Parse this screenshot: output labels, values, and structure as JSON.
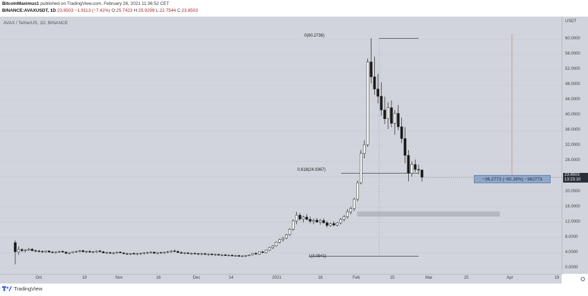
{
  "header": {
    "author": "BitcoinMaximus1",
    "published_text": "published on TradingView.com, February 28, 2021 11:36:52 CET",
    "symbol": "BINANCE:AVAXUSDT, 1D",
    "last": "23.8503",
    "change": "−1.9113 (−7.42%)",
    "o_label": "O:",
    "o_value": "25.7423",
    "h_label": "H:",
    "h_value": "25.9299",
    "l_label": "L:",
    "l_value": "22.7544",
    "c_label": "C:",
    "c_value": "23.8503"
  },
  "chart_title": "AVAX / TetherUS, 1D, BINANCE",
  "price_axis": {
    "currency": "USDT",
    "ticks": [
      "60.0000",
      "56.0000",
      "52.0000",
      "48.0000",
      "44.0000",
      "40.0000",
      "36.0000",
      "32.0000",
      "28.0000",
      "24.0000",
      "20.0000",
      "16.0000",
      "12.0000",
      "8.0000",
      "4.0000",
      "0.0000"
    ],
    "tick_values": [
      60,
      56,
      52,
      48,
      44,
      40,
      36,
      32,
      28,
      24,
      20,
      16,
      12,
      8,
      4,
      0
    ],
    "current_price": "23.8503",
    "countdown": "13:23:10"
  },
  "time_axis": {
    "ticks": [
      "Oct",
      "19",
      "Nov",
      "16",
      "Dec",
      "14",
      "2021",
      "18",
      "Feb",
      "15",
      "Mar",
      "15",
      "Apr",
      "19"
    ]
  },
  "fib": {
    "top_label": "0(60.2736)",
    "mid_label": "0.618(24.9367)",
    "bottom_label": "1(3.0941)",
    "top_value": 60.2736,
    "mid_value": 24.9367,
    "bottom_value": 3.0941
  },
  "measure": {
    "text": "−36.2773 (−60.19%) −362773"
  },
  "support_zone": {
    "low": 13.6,
    "high": 14.8
  },
  "footer": {
    "brand": "TradingView"
  },
  "colors": {
    "chart_bg": "#d1d4dc",
    "candle_up": "#ffffff",
    "candle_down": "#1a1a1a",
    "zone": "#b4b7bf",
    "measure": "#8fa8c8",
    "arrow": "#d08a8a"
  },
  "chart_data": {
    "type": "candlestick",
    "interval": "1D",
    "ylim": [
      -1.5,
      66
    ],
    "candles": [
      [
        6.7,
        7.3,
        1.0,
        4.3
      ],
      [
        4.3,
        5.8,
        3.5,
        4.9
      ],
      [
        4.9,
        5.2,
        4.2,
        4.6
      ],
      [
        4.6,
        5.0,
        4.1,
        4.8
      ],
      [
        4.8,
        5.3,
        4.5,
        5.0
      ],
      [
        5.0,
        5.2,
        4.4,
        4.6
      ],
      [
        4.6,
        4.9,
        4.2,
        4.5
      ],
      [
        4.5,
        4.8,
        4.1,
        4.4
      ],
      [
        4.4,
        4.7,
        4.0,
        4.3
      ],
      [
        4.3,
        4.6,
        4.0,
        4.5
      ],
      [
        4.5,
        4.7,
        4.1,
        4.2
      ],
      [
        4.2,
        4.5,
        3.9,
        4.1
      ],
      [
        4.1,
        4.4,
        3.8,
        4.3
      ],
      [
        4.3,
        4.6,
        4.0,
        4.4
      ],
      [
        4.4,
        4.7,
        4.1,
        4.2
      ],
      [
        4.2,
        4.4,
        3.7,
        3.9
      ],
      [
        3.9,
        4.2,
        3.6,
        4.1
      ],
      [
        4.1,
        4.4,
        3.9,
        4.3
      ],
      [
        4.3,
        4.6,
        4.0,
        4.4
      ],
      [
        4.4,
        4.8,
        4.1,
        4.6
      ],
      [
        4.6,
        4.8,
        4.2,
        4.3
      ],
      [
        4.3,
        4.6,
        4.0,
        4.4
      ],
      [
        4.4,
        4.7,
        4.1,
        4.2
      ],
      [
        4.2,
        4.5,
        3.9,
        4.3
      ],
      [
        4.3,
        4.6,
        4.0,
        4.5
      ],
      [
        4.5,
        4.8,
        4.2,
        4.3
      ],
      [
        4.3,
        4.5,
        3.9,
        4.0
      ],
      [
        4.0,
        4.3,
        3.7,
        4.1
      ],
      [
        4.1,
        4.3,
        3.8,
        3.9
      ],
      [
        3.9,
        4.2,
        3.6,
        4.0
      ],
      [
        4.0,
        4.3,
        3.7,
        4.2
      ],
      [
        4.2,
        4.4,
        3.9,
        4.0
      ],
      [
        4.0,
        4.2,
        3.6,
        3.8
      ],
      [
        3.8,
        4.0,
        3.5,
        3.7
      ],
      [
        3.7,
        4.0,
        3.4,
        3.9
      ],
      [
        3.9,
        4.1,
        3.6,
        3.7
      ],
      [
        3.7,
        4.0,
        3.4,
        3.8
      ],
      [
        3.8,
        4.1,
        3.5,
        3.9
      ],
      [
        3.9,
        4.2,
        3.6,
        4.0
      ],
      [
        4.0,
        4.3,
        3.7,
        4.1
      ],
      [
        4.1,
        4.4,
        3.8,
        4.2
      ],
      [
        4.2,
        4.4,
        3.8,
        3.9
      ],
      [
        3.9,
        4.2,
        3.6,
        4.1
      ],
      [
        4.1,
        4.3,
        3.8,
        4.0
      ],
      [
        4.0,
        4.3,
        3.7,
        4.2
      ],
      [
        4.2,
        4.5,
        3.9,
        4.3
      ],
      [
        4.3,
        4.7,
        4.0,
        4.5
      ],
      [
        4.5,
        4.9,
        4.2,
        4.4
      ],
      [
        4.4,
        4.6,
        4.0,
        4.1
      ],
      [
        4.1,
        4.4,
        3.8,
        3.9
      ],
      [
        3.9,
        4.2,
        3.6,
        4.0
      ],
      [
        4.0,
        4.2,
        3.7,
        3.8
      ],
      [
        3.8,
        4.1,
        3.5,
        3.9
      ],
      [
        3.9,
        4.1,
        3.6,
        3.8
      ],
      [
        3.8,
        4.0,
        3.5,
        3.7
      ],
      [
        3.7,
        4.0,
        3.4,
        3.8
      ],
      [
        3.8,
        4.0,
        3.5,
        3.6
      ],
      [
        3.6,
        3.9,
        3.3,
        3.7
      ],
      [
        3.7,
        3.9,
        3.4,
        3.5
      ],
      [
        3.5,
        3.8,
        3.2,
        3.6
      ],
      [
        3.6,
        3.8,
        3.3,
        3.4
      ],
      [
        3.4,
        3.7,
        3.1,
        3.5
      ],
      [
        3.5,
        3.7,
        3.2,
        3.3
      ],
      [
        3.3,
        3.6,
        3.1,
        3.4
      ],
      [
        3.4,
        3.6,
        3.1,
        3.2
      ],
      [
        3.2,
        3.5,
        3.0,
        3.3
      ],
      [
        3.3,
        3.5,
        3.0,
        3.1
      ],
      [
        3.1,
        3.4,
        2.9,
        3.2
      ],
      [
        3.2,
        3.4,
        2.9,
        3.3
      ],
      [
        3.3,
        3.6,
        3.1,
        3.5
      ],
      [
        3.5,
        4.0,
        3.3,
        3.9
      ],
      [
        3.9,
        4.2,
        3.5,
        3.7
      ],
      [
        3.7,
        4.4,
        3.5,
        4.3
      ],
      [
        4.3,
        4.5,
        3.9,
        4.1
      ],
      [
        4.1,
        4.8,
        3.9,
        4.7
      ],
      [
        4.7,
        5.6,
        4.5,
        5.4
      ],
      [
        5.4,
        6.0,
        5.0,
        5.8
      ],
      [
        5.8,
        7.0,
        5.6,
        6.8
      ],
      [
        6.8,
        7.8,
        6.5,
        7.5
      ],
      [
        7.5,
        8.2,
        7.0,
        7.9
      ],
      [
        7.9,
        9.0,
        7.6,
        8.8
      ],
      [
        8.8,
        10.5,
        8.5,
        10.2
      ],
      [
        10.2,
        12.8,
        9.8,
        12.4
      ],
      [
        12.4,
        14.8,
        11.5,
        13.9
      ],
      [
        13.9,
        14.5,
        12.5,
        12.9
      ],
      [
        12.9,
        13.8,
        12.0,
        13.4
      ],
      [
        13.4,
        14.2,
        12.6,
        12.8
      ],
      [
        12.8,
        13.5,
        11.8,
        12.3
      ],
      [
        12.3,
        13.0,
        11.5,
        12.6
      ],
      [
        12.6,
        13.2,
        11.9,
        12.1
      ],
      [
        12.1,
        12.9,
        11.4,
        12.5
      ],
      [
        12.5,
        13.1,
        11.8,
        11.9
      ],
      [
        11.9,
        12.4,
        10.7,
        11.2
      ],
      [
        11.2,
        12.0,
        10.8,
        11.7
      ],
      [
        11.7,
        12.3,
        11.0,
        11.3
      ],
      [
        11.3,
        12.1,
        10.9,
        11.9
      ],
      [
        11.9,
        13.2,
        11.5,
        12.8
      ],
      [
        12.8,
        14.0,
        12.3,
        13.5
      ],
      [
        13.5,
        15.5,
        13.0,
        14.8
      ],
      [
        14.8,
        16.2,
        14.1,
        15.6
      ],
      [
        15.6,
        18.5,
        15.0,
        18.1
      ],
      [
        18.1,
        23.0,
        17.5,
        22.4
      ],
      [
        22.4,
        31.0,
        22.0,
        30.1
      ],
      [
        30.1,
        33.5,
        28.8,
        32.4
      ],
      [
        32.4,
        55.0,
        31.8,
        54.1
      ],
      [
        54.1,
        60.3,
        48.5,
        50.2
      ],
      [
        50.2,
        55.5,
        45.5,
        47.0
      ],
      [
        47.0,
        51.0,
        43.2,
        45.1
      ],
      [
        45.1,
        48.8,
        40.0,
        41.5
      ],
      [
        41.5,
        45.0,
        37.8,
        39.2
      ],
      [
        39.2,
        43.5,
        36.5,
        42.1
      ],
      [
        42.1,
        44.0,
        37.0,
        38.0
      ],
      [
        38.0,
        41.5,
        35.0,
        40.6
      ],
      [
        40.6,
        42.8,
        36.2,
        37.1
      ],
      [
        37.1,
        39.5,
        32.8,
        34.0
      ],
      [
        34.0,
        37.0,
        27.5,
        29.6
      ],
      [
        29.6,
        31.0,
        22.8,
        24.9
      ],
      [
        24.9,
        28.0,
        24.0,
        27.2
      ],
      [
        27.2,
        28.5,
        25.2,
        25.9
      ],
      [
        25.9,
        27.2,
        24.6,
        25.74
      ],
      [
        25.7423,
        25.9299,
        22.7544,
        23.8503
      ]
    ]
  }
}
